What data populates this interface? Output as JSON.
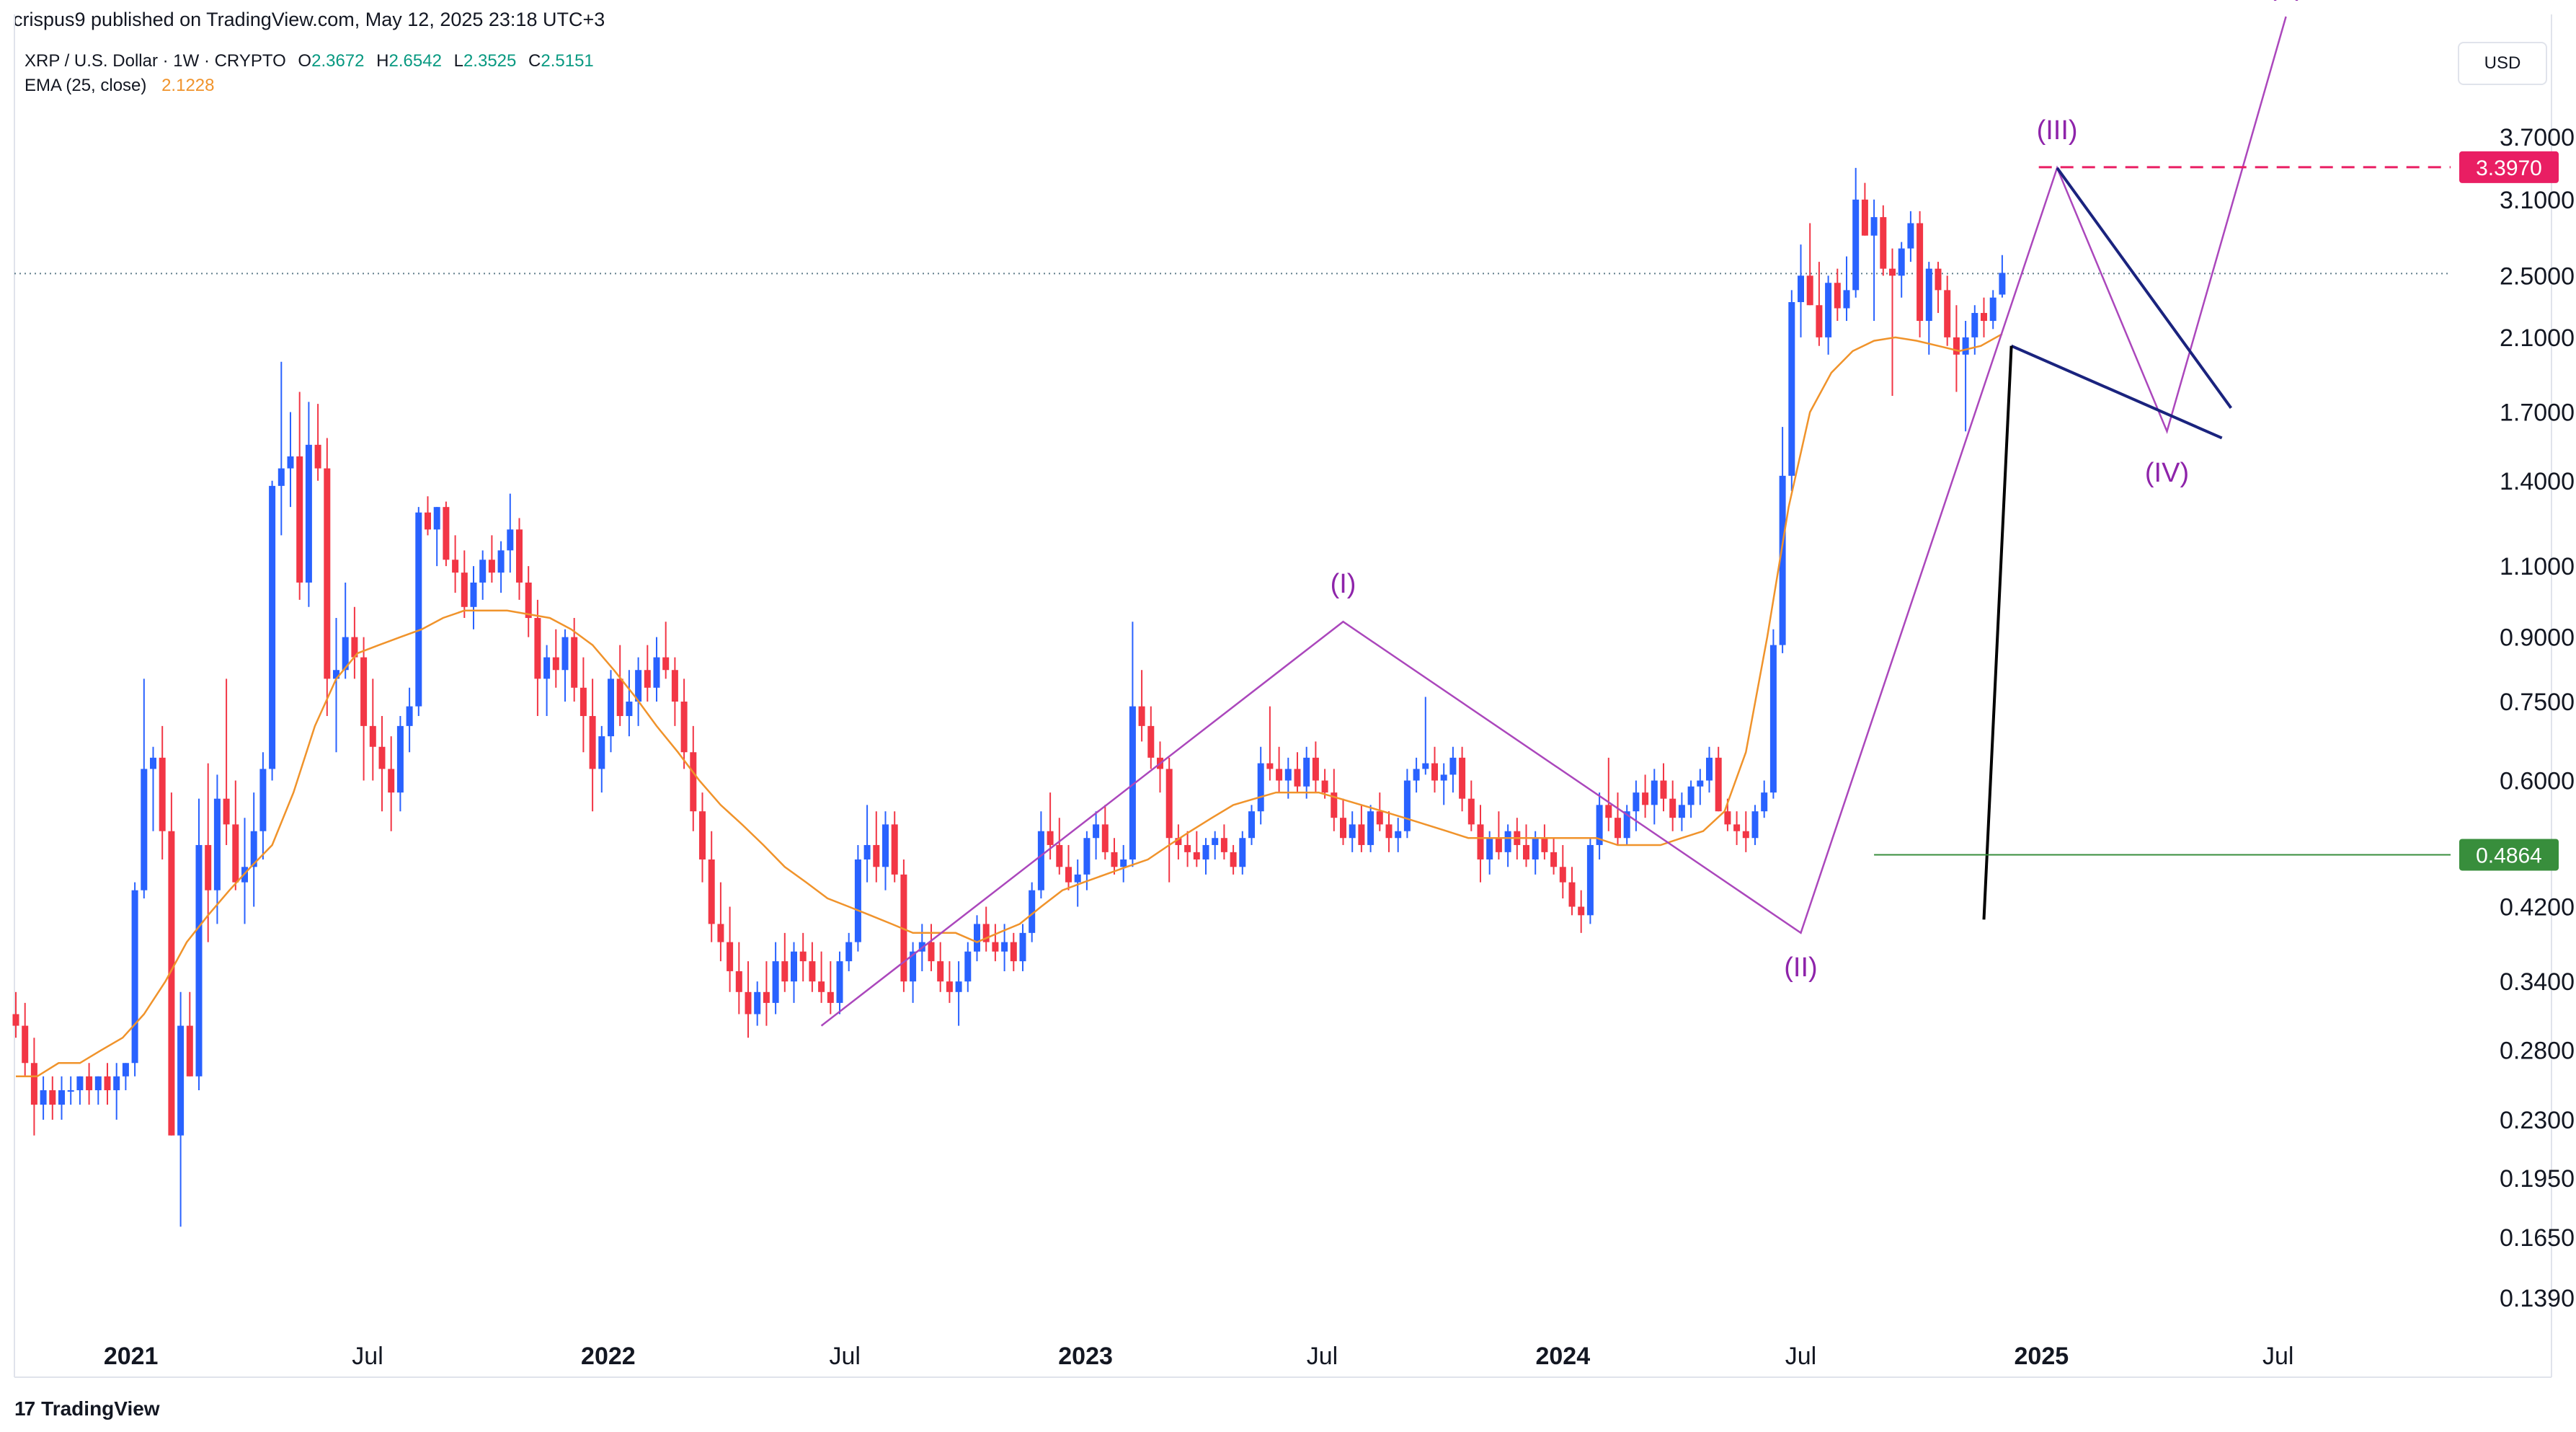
{
  "header": {
    "publisher": "crispus9 published on TradingView.com, May 12, 2025 23:18 UTC+3"
  },
  "legend": {
    "symbol": "XRP / U.S. Dollar · 1W · CRYPTO",
    "ohlc": [
      {
        "label": "O",
        "value": "2.3672"
      },
      {
        "label": "H",
        "value": "2.6542"
      },
      {
        "label": "L",
        "value": "2.3525"
      },
      {
        "label": "C",
        "value": "2.5151"
      }
    ],
    "ema_label": "EMA (25, close)",
    "ema_value": "2.1228"
  },
  "currency": "USD",
  "footer": {
    "brand": "TradingView",
    "brand_mark": "17"
  },
  "colors": {
    "up": "#2962ff",
    "down": "#f23645",
    "ema": "#f0932b",
    "wave": "#ab47bc",
    "trend": "#1a237e",
    "red_dash": "#e91e63",
    "green": "#388e3c"
  },
  "chart_data": {
    "type": "candlestick",
    "scale": "log",
    "timeframe": "1W",
    "y_ticks": [
      "3.7000",
      "3.1000",
      "2.5000",
      "2.1000",
      "1.7000",
      "1.4000",
      "1.1000",
      "0.9000",
      "0.7500",
      "0.6000",
      "0.4200",
      "0.3400",
      "0.2800",
      "0.2300",
      "0.1950",
      "0.1650",
      "0.1390"
    ],
    "x_ticks": [
      "2021",
      "Jul",
      "2022",
      "Jul",
      "2023",
      "Jul",
      "2024",
      "Jul",
      "2025",
      "Jul"
    ],
    "price_labels": [
      {
        "value": "3.3970",
        "color": "#e91e63"
      },
      {
        "value": "0.4864",
        "color": "#388e3c"
      }
    ],
    "current_price": 2.5151,
    "waves": [
      {
        "label": "(I)",
        "date": "2023-07-17",
        "price": 0.94
      },
      {
        "label": "(II)",
        "date": "2024-07-01",
        "price": 0.39
      },
      {
        "label": "(III)",
        "date": "2025-01-13",
        "price": 3.39
      },
      {
        "label": "(IV)",
        "date": "2025-04-07",
        "price": 1.61
      },
      {
        "label": "(V)",
        "date": "2025-07-07",
        "price": 5.2
      }
    ],
    "candles": [
      [
        0.31,
        0.33,
        0.29,
        0.3
      ],
      [
        0.3,
        0.32,
        0.26,
        0.27
      ],
      [
        0.27,
        0.29,
        0.22,
        0.24
      ],
      [
        0.24,
        0.26,
        0.23,
        0.25
      ],
      [
        0.25,
        0.26,
        0.23,
        0.24
      ],
      [
        0.24,
        0.26,
        0.23,
        0.25
      ],
      [
        0.25,
        0.26,
        0.24,
        0.25
      ],
      [
        0.25,
        0.26,
        0.24,
        0.26
      ],
      [
        0.26,
        0.27,
        0.24,
        0.25
      ],
      [
        0.25,
        0.26,
        0.24,
        0.26
      ],
      [
        0.26,
        0.27,
        0.24,
        0.25
      ],
      [
        0.25,
        0.27,
        0.23,
        0.26
      ],
      [
        0.26,
        0.27,
        0.25,
        0.27
      ],
      [
        0.27,
        0.45,
        0.26,
        0.44
      ],
      [
        0.44,
        0.8,
        0.43,
        0.62
      ],
      [
        0.62,
        0.66,
        0.52,
        0.64
      ],
      [
        0.64,
        0.7,
        0.48,
        0.52
      ],
      [
        0.52,
        0.58,
        0.22,
        0.22
      ],
      [
        0.22,
        0.33,
        0.17,
        0.3
      ],
      [
        0.3,
        0.33,
        0.26,
        0.26
      ],
      [
        0.26,
        0.57,
        0.25,
        0.5
      ],
      [
        0.5,
        0.63,
        0.38,
        0.44
      ],
      [
        0.44,
        0.61,
        0.4,
        0.57
      ],
      [
        0.57,
        0.8,
        0.5,
        0.53
      ],
      [
        0.53,
        0.6,
        0.44,
        0.45
      ],
      [
        0.45,
        0.54,
        0.4,
        0.47
      ],
      [
        0.47,
        0.58,
        0.42,
        0.52
      ],
      [
        0.52,
        0.65,
        0.48,
        0.62
      ],
      [
        0.62,
        1.4,
        0.6,
        1.38
      ],
      [
        1.38,
        1.96,
        1.2,
        1.45
      ],
      [
        1.45,
        1.7,
        1.3,
        1.5
      ],
      [
        1.5,
        1.8,
        1.0,
        1.05
      ],
      [
        1.05,
        1.75,
        0.98,
        1.55
      ],
      [
        1.55,
        1.74,
        1.4,
        1.45
      ],
      [
        1.45,
        1.58,
        0.72,
        0.8
      ],
      [
        0.8,
        0.95,
        0.65,
        0.82
      ],
      [
        0.82,
        1.05,
        0.8,
        0.9
      ],
      [
        0.9,
        0.98,
        0.8,
        0.85
      ],
      [
        0.85,
        0.9,
        0.6,
        0.7
      ],
      [
        0.7,
        0.8,
        0.6,
        0.66
      ],
      [
        0.66,
        0.72,
        0.55,
        0.62
      ],
      [
        0.62,
        0.68,
        0.52,
        0.58
      ],
      [
        0.58,
        0.72,
        0.55,
        0.7
      ],
      [
        0.7,
        0.78,
        0.65,
        0.74
      ],
      [
        0.74,
        1.3,
        0.72,
        1.28
      ],
      [
        1.28,
        1.34,
        1.2,
        1.22
      ],
      [
        1.22,
        1.3,
        1.1,
        1.3
      ],
      [
        1.3,
        1.32,
        1.1,
        1.12
      ],
      [
        1.12,
        1.2,
        1.02,
        1.08
      ],
      [
        1.08,
        1.15,
        0.95,
        0.98
      ],
      [
        0.98,
        1.1,
        0.92,
        1.05
      ],
      [
        1.05,
        1.15,
        1.0,
        1.12
      ],
      [
        1.12,
        1.2,
        1.05,
        1.08
      ],
      [
        1.08,
        1.18,
        1.02,
        1.15
      ],
      [
        1.15,
        1.35,
        1.08,
        1.22
      ],
      [
        1.22,
        1.26,
        1.0,
        1.05
      ],
      [
        1.05,
        1.1,
        0.9,
        0.95
      ],
      [
        0.95,
        1.0,
        0.72,
        0.8
      ],
      [
        0.8,
        0.88,
        0.72,
        0.85
      ],
      [
        0.85,
        0.92,
        0.78,
        0.82
      ],
      [
        0.82,
        0.92,
        0.75,
        0.9
      ],
      [
        0.9,
        0.95,
        0.75,
        0.78
      ],
      [
        0.78,
        0.85,
        0.65,
        0.72
      ],
      [
        0.72,
        0.8,
        0.55,
        0.62
      ],
      [
        0.62,
        0.7,
        0.58,
        0.68
      ],
      [
        0.68,
        0.82,
        0.65,
        0.8
      ],
      [
        0.8,
        0.88,
        0.7,
        0.72
      ],
      [
        0.72,
        0.82,
        0.68,
        0.75
      ],
      [
        0.75,
        0.85,
        0.7,
        0.82
      ],
      [
        0.82,
        0.88,
        0.75,
        0.78
      ],
      [
        0.78,
        0.9,
        0.75,
        0.85
      ],
      [
        0.85,
        0.94,
        0.8,
        0.82
      ],
      [
        0.82,
        0.85,
        0.7,
        0.75
      ],
      [
        0.75,
        0.8,
        0.62,
        0.65
      ],
      [
        0.65,
        0.7,
        0.52,
        0.55
      ],
      [
        0.55,
        0.58,
        0.45,
        0.48
      ],
      [
        0.48,
        0.52,
        0.38,
        0.4
      ],
      [
        0.4,
        0.45,
        0.36,
        0.38
      ],
      [
        0.38,
        0.42,
        0.33,
        0.35
      ],
      [
        0.35,
        0.38,
        0.31,
        0.33
      ],
      [
        0.33,
        0.36,
        0.29,
        0.31
      ],
      [
        0.31,
        0.34,
        0.3,
        0.33
      ],
      [
        0.33,
        0.36,
        0.3,
        0.32
      ],
      [
        0.32,
        0.38,
        0.31,
        0.36
      ],
      [
        0.36,
        0.39,
        0.33,
        0.34
      ],
      [
        0.34,
        0.38,
        0.32,
        0.37
      ],
      [
        0.37,
        0.39,
        0.34,
        0.36
      ],
      [
        0.36,
        0.38,
        0.33,
        0.34
      ],
      [
        0.34,
        0.37,
        0.32,
        0.33
      ],
      [
        0.33,
        0.36,
        0.31,
        0.32
      ],
      [
        0.32,
        0.37,
        0.31,
        0.36
      ],
      [
        0.36,
        0.39,
        0.35,
        0.38
      ],
      [
        0.38,
        0.5,
        0.37,
        0.48
      ],
      [
        0.48,
        0.56,
        0.45,
        0.5
      ],
      [
        0.5,
        0.55,
        0.45,
        0.47
      ],
      [
        0.47,
        0.55,
        0.44,
        0.53
      ],
      [
        0.53,
        0.55,
        0.45,
        0.46
      ],
      [
        0.46,
        0.48,
        0.33,
        0.34
      ],
      [
        0.34,
        0.38,
        0.32,
        0.37
      ],
      [
        0.37,
        0.4,
        0.35,
        0.38
      ],
      [
        0.38,
        0.4,
        0.35,
        0.36
      ],
      [
        0.36,
        0.38,
        0.33,
        0.34
      ],
      [
        0.34,
        0.36,
        0.32,
        0.33
      ],
      [
        0.33,
        0.36,
        0.3,
        0.34
      ],
      [
        0.34,
        0.38,
        0.33,
        0.37
      ],
      [
        0.37,
        0.41,
        0.36,
        0.4
      ],
      [
        0.4,
        0.42,
        0.37,
        0.38
      ],
      [
        0.38,
        0.4,
        0.36,
        0.37
      ],
      [
        0.37,
        0.4,
        0.35,
        0.38
      ],
      [
        0.38,
        0.39,
        0.35,
        0.36
      ],
      [
        0.36,
        0.4,
        0.35,
        0.39
      ],
      [
        0.39,
        0.45,
        0.38,
        0.44
      ],
      [
        0.44,
        0.55,
        0.43,
        0.52
      ],
      [
        0.52,
        0.58,
        0.48,
        0.5
      ],
      [
        0.5,
        0.54,
        0.46,
        0.47
      ],
      [
        0.47,
        0.5,
        0.44,
        0.45
      ],
      [
        0.45,
        0.48,
        0.42,
        0.46
      ],
      [
        0.46,
        0.52,
        0.44,
        0.51
      ],
      [
        0.51,
        0.55,
        0.48,
        0.53
      ],
      [
        0.53,
        0.56,
        0.48,
        0.49
      ],
      [
        0.49,
        0.51,
        0.46,
        0.47
      ],
      [
        0.47,
        0.5,
        0.45,
        0.48
      ],
      [
        0.48,
        0.94,
        0.47,
        0.74
      ],
      [
        0.74,
        0.82,
        0.67,
        0.7
      ],
      [
        0.7,
        0.74,
        0.62,
        0.64
      ],
      [
        0.64,
        0.67,
        0.58,
        0.62
      ],
      [
        0.62,
        0.64,
        0.45,
        0.51
      ],
      [
        0.51,
        0.53,
        0.48,
        0.5
      ],
      [
        0.5,
        0.52,
        0.47,
        0.49
      ],
      [
        0.49,
        0.52,
        0.47,
        0.48
      ],
      [
        0.48,
        0.51,
        0.46,
        0.5
      ],
      [
        0.5,
        0.52,
        0.48,
        0.51
      ],
      [
        0.51,
        0.53,
        0.48,
        0.49
      ],
      [
        0.49,
        0.5,
        0.46,
        0.47
      ],
      [
        0.47,
        0.52,
        0.46,
        0.51
      ],
      [
        0.51,
        0.56,
        0.5,
        0.55
      ],
      [
        0.55,
        0.66,
        0.53,
        0.63
      ],
      [
        0.63,
        0.74,
        0.6,
        0.62
      ],
      [
        0.62,
        0.66,
        0.58,
        0.6
      ],
      [
        0.6,
        0.64,
        0.57,
        0.62
      ],
      [
        0.62,
        0.65,
        0.58,
        0.59
      ],
      [
        0.59,
        0.66,
        0.57,
        0.64
      ],
      [
        0.64,
        0.67,
        0.58,
        0.6
      ],
      [
        0.6,
        0.62,
        0.57,
        0.58
      ],
      [
        0.58,
        0.62,
        0.52,
        0.54
      ],
      [
        0.54,
        0.57,
        0.5,
        0.51
      ],
      [
        0.51,
        0.55,
        0.49,
        0.53
      ],
      [
        0.53,
        0.56,
        0.49,
        0.5
      ],
      [
        0.5,
        0.56,
        0.49,
        0.55
      ],
      [
        0.55,
        0.58,
        0.52,
        0.53
      ],
      [
        0.53,
        0.55,
        0.49,
        0.51
      ],
      [
        0.51,
        0.54,
        0.49,
        0.52
      ],
      [
        0.52,
        0.62,
        0.51,
        0.6
      ],
      [
        0.6,
        0.64,
        0.58,
        0.62
      ],
      [
        0.62,
        0.76,
        0.61,
        0.63
      ],
      [
        0.63,
        0.66,
        0.58,
        0.6
      ],
      [
        0.6,
        0.63,
        0.56,
        0.61
      ],
      [
        0.61,
        0.66,
        0.58,
        0.64
      ],
      [
        0.64,
        0.66,
        0.55,
        0.57
      ],
      [
        0.57,
        0.6,
        0.52,
        0.53
      ],
      [
        0.53,
        0.56,
        0.45,
        0.48
      ],
      [
        0.48,
        0.52,
        0.46,
        0.51
      ],
      [
        0.51,
        0.55,
        0.48,
        0.49
      ],
      [
        0.49,
        0.53,
        0.47,
        0.52
      ],
      [
        0.52,
        0.54,
        0.48,
        0.5
      ],
      [
        0.5,
        0.53,
        0.47,
        0.48
      ],
      [
        0.48,
        0.52,
        0.46,
        0.51
      ],
      [
        0.51,
        0.53,
        0.48,
        0.49
      ],
      [
        0.49,
        0.51,
        0.46,
        0.47
      ],
      [
        0.47,
        0.5,
        0.43,
        0.45
      ],
      [
        0.45,
        0.47,
        0.41,
        0.42
      ],
      [
        0.42,
        0.44,
        0.39,
        0.41
      ],
      [
        0.41,
        0.51,
        0.4,
        0.5
      ],
      [
        0.5,
        0.58,
        0.48,
        0.56
      ],
      [
        0.56,
        0.64,
        0.52,
        0.54
      ],
      [
        0.54,
        0.58,
        0.5,
        0.51
      ],
      [
        0.51,
        0.56,
        0.5,
        0.55
      ],
      [
        0.55,
        0.6,
        0.52,
        0.58
      ],
      [
        0.58,
        0.61,
        0.54,
        0.56
      ],
      [
        0.56,
        0.62,
        0.53,
        0.6
      ],
      [
        0.6,
        0.63,
        0.55,
        0.57
      ],
      [
        0.57,
        0.6,
        0.52,
        0.54
      ],
      [
        0.54,
        0.58,
        0.52,
        0.56
      ],
      [
        0.56,
        0.6,
        0.54,
        0.59
      ],
      [
        0.59,
        0.62,
        0.56,
        0.6
      ],
      [
        0.6,
        0.66,
        0.58,
        0.64
      ],
      [
        0.64,
        0.66,
        0.55,
        0.55
      ],
      [
        0.55,
        0.57,
        0.52,
        0.53
      ],
      [
        0.53,
        0.55,
        0.5,
        0.52
      ],
      [
        0.52,
        0.55,
        0.49,
        0.51
      ],
      [
        0.51,
        0.56,
        0.5,
        0.55
      ],
      [
        0.55,
        0.6,
        0.54,
        0.58
      ],
      [
        0.58,
        0.92,
        0.57,
        0.88
      ],
      [
        0.88,
        1.63,
        0.86,
        1.42
      ],
      [
        1.42,
        2.4,
        1.36,
        2.32
      ],
      [
        2.32,
        2.73,
        2.1,
        2.5
      ],
      [
        2.5,
        2.9,
        2.3,
        2.3
      ],
      [
        2.3,
        2.6,
        2.05,
        2.1
      ],
      [
        2.1,
        2.5,
        2.0,
        2.45
      ],
      [
        2.45,
        2.55,
        2.2,
        2.28
      ],
      [
        2.28,
        2.64,
        2.2,
        2.4
      ],
      [
        2.4,
        3.39,
        2.35,
        3.1
      ],
      [
        3.1,
        3.25,
        2.8,
        2.8
      ],
      [
        2.8,
        3.1,
        2.2,
        2.95
      ],
      [
        2.95,
        3.05,
        2.5,
        2.55
      ],
      [
        2.55,
        2.7,
        1.78,
        2.5
      ],
      [
        2.5,
        2.75,
        2.35,
        2.7
      ],
      [
        2.7,
        3.0,
        2.6,
        2.9
      ],
      [
        2.9,
        3.0,
        2.1,
        2.2
      ],
      [
        2.2,
        2.6,
        2.0,
        2.55
      ],
      [
        2.55,
        2.6,
        2.25,
        2.4
      ],
      [
        2.4,
        2.5,
        2.05,
        2.1
      ],
      [
        2.1,
        2.3,
        1.8,
        2.0
      ],
      [
        2.0,
        2.2,
        1.61,
        2.1
      ],
      [
        2.1,
        2.3,
        2.0,
        2.25
      ],
      [
        2.25,
        2.35,
        2.1,
        2.2
      ],
      [
        2.2,
        2.4,
        2.15,
        2.35
      ],
      [
        2.37,
        2.65,
        2.35,
        2.52
      ]
    ],
    "ema": [
      0.26,
      0.26,
      0.27,
      0.27,
      0.28,
      0.29,
      0.31,
      0.34,
      0.38,
      0.41,
      0.44,
      0.47,
      0.5,
      0.58,
      0.7,
      0.8,
      0.86,
      0.88,
      0.9,
      0.92,
      0.95,
      0.97,
      0.97,
      0.97,
      0.96,
      0.95,
      0.92,
      0.88,
      0.82,
      0.76,
      0.7,
      0.65,
      0.6,
      0.56,
      0.53,
      0.5,
      0.47,
      0.45,
      0.43,
      0.42,
      0.41,
      0.4,
      0.39,
      0.39,
      0.39,
      0.38,
      0.39,
      0.4,
      0.42,
      0.44,
      0.45,
      0.46,
      0.47,
      0.48,
      0.5,
      0.52,
      0.54,
      0.56,
      0.57,
      0.58,
      0.58,
      0.58,
      0.57,
      0.56,
      0.55,
      0.54,
      0.53,
      0.52,
      0.51,
      0.51,
      0.51,
      0.51,
      0.51,
      0.51,
      0.51,
      0.5,
      0.5,
      0.5,
      0.51,
      0.52,
      0.55,
      0.65,
      0.9,
      1.3,
      1.7,
      1.9,
      2.02,
      2.08,
      2.1,
      2.08,
      2.05,
      2.02,
      2.05,
      2.12
    ]
  }
}
